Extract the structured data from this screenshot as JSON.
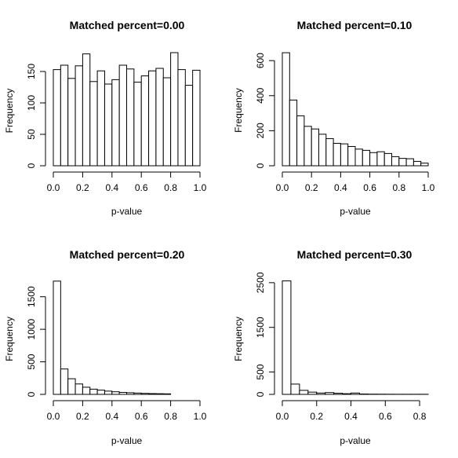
{
  "chart_data": [
    {
      "type": "bar",
      "title": "Matched percent=0.00",
      "xlabel": "p-value",
      "ylabel": "Frequency",
      "xlim": [
        0,
        1
      ],
      "ylim": [
        0,
        180
      ],
      "bin_width": 0.05,
      "x_ticks": [
        0,
        0.2,
        0.4,
        0.6,
        0.8,
        1.0
      ],
      "x_tick_labels": [
        "0.0",
        "0.2",
        "0.4",
        "0.6",
        "0.8",
        "1.0"
      ],
      "y_ticks": [
        0,
        50,
        100,
        150
      ],
      "y_tick_labels": [
        "0",
        "50",
        "100",
        "150"
      ],
      "bin_starts": [
        0,
        0.05,
        0.1,
        0.15,
        0.2,
        0.25,
        0.3,
        0.35,
        0.4,
        0.45,
        0.5,
        0.55,
        0.6,
        0.65,
        0.7,
        0.75,
        0.8,
        0.85,
        0.9,
        0.95
      ],
      "values": [
        153,
        160,
        139,
        159,
        178,
        134,
        151,
        130,
        137,
        160,
        154,
        133,
        143,
        151,
        155,
        140,
        180,
        153,
        128,
        152
      ]
    },
    {
      "type": "bar",
      "title": "Matched percent=0.10",
      "xlabel": "p-value",
      "ylabel": "Frequency",
      "xlim": [
        0,
        1
      ],
      "ylim": [
        0,
        650
      ],
      "bin_width": 0.05,
      "x_ticks": [
        0,
        0.2,
        0.4,
        0.6,
        0.8,
        1.0
      ],
      "x_tick_labels": [
        "0.0",
        "0.2",
        "0.4",
        "0.6",
        "0.8",
        "1.0"
      ],
      "y_ticks": [
        0,
        200,
        400,
        600
      ],
      "y_tick_labels": [
        "0",
        "200",
        "400",
        "600"
      ],
      "bin_starts": [
        0,
        0.05,
        0.1,
        0.15,
        0.2,
        0.25,
        0.3,
        0.35,
        0.4,
        0.45,
        0.5,
        0.55,
        0.6,
        0.65,
        0.7,
        0.75,
        0.8,
        0.85,
        0.9,
        0.95
      ],
      "values": [
        645,
        375,
        285,
        225,
        210,
        180,
        155,
        128,
        125,
        110,
        95,
        88,
        75,
        80,
        70,
        52,
        42,
        40,
        25,
        15
      ]
    },
    {
      "type": "bar",
      "title": "Matched percent=0.20",
      "xlabel": "p-value",
      "ylabel": "Frequency",
      "xlim": [
        0,
        1
      ],
      "ylim": [
        0,
        1750
      ],
      "bin_width": 0.05,
      "x_ticks": [
        0,
        0.2,
        0.4,
        0.6,
        0.8,
        1.0
      ],
      "x_tick_labels": [
        "0.0",
        "0.2",
        "0.4",
        "0.6",
        "0.8",
        "1.0"
      ],
      "y_ticks": [
        0,
        500,
        1000,
        1500
      ],
      "y_tick_labels": [
        "0",
        "500",
        "1000",
        "1500"
      ],
      "bin_starts": [
        0,
        0.05,
        0.1,
        0.15,
        0.2,
        0.25,
        0.3,
        0.35,
        0.4,
        0.45,
        0.5,
        0.55,
        0.6,
        0.65,
        0.7,
        0.75
      ],
      "values": [
        1740,
        390,
        240,
        160,
        110,
        80,
        65,
        50,
        40,
        30,
        25,
        20,
        15,
        12,
        10,
        8
      ]
    },
    {
      "type": "bar",
      "title": "Matched percent=0.30",
      "xlabel": "p-value",
      "ylabel": "Frequency",
      "xlim": [
        0,
        0.85
      ],
      "ylim": [
        0,
        2550
      ],
      "bin_width": 0.05,
      "x_ticks": [
        0,
        0.2,
        0.4,
        0.6,
        0.8
      ],
      "x_tick_labels": [
        "0.0",
        "0.2",
        "0.4",
        "0.6",
        "0.8"
      ],
      "y_ticks": [
        0,
        500,
        1500,
        2500
      ],
      "y_tick_labels": [
        "0",
        "500",
        "1500",
        "2500"
      ],
      "bin_starts": [
        0,
        0.05,
        0.1,
        0.15,
        0.2,
        0.25,
        0.3,
        0.35,
        0.4,
        0.45,
        0.5,
        0.55,
        0.6,
        0.65,
        0.7,
        0.75,
        0.8
      ],
      "values": [
        2540,
        230,
        90,
        50,
        30,
        40,
        25,
        15,
        30,
        8,
        5,
        4,
        3,
        2,
        2,
        2,
        2
      ]
    }
  ]
}
